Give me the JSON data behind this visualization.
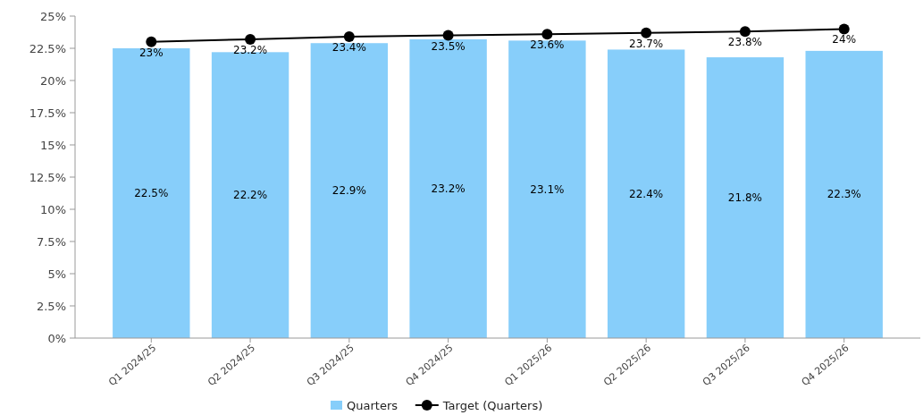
{
  "chart_data": {
    "type": "bar",
    "categories": [
      "Q1 2024/25",
      "Q2 2024/25",
      "Q3 2024/25",
      "Q4 2024/25",
      "Q1 2025/26",
      "Q2 2025/26",
      "Q3 2025/26",
      "Q4 2025/26"
    ],
    "series": [
      {
        "name": "Quarters",
        "color": "#87cefa",
        "values": [
          22.5,
          22.2,
          22.9,
          23.2,
          23.1,
          22.4,
          21.8,
          22.3
        ],
        "value_labels": [
          "22.5%",
          "22.2%",
          "22.9%",
          "23.2%",
          "23.1%",
          "22.4%",
          "21.8%",
          "22.3%"
        ]
      },
      {
        "name": "Target (Quarters)",
        "type": "line",
        "color": "#000000",
        "marker": "circle",
        "values": [
          23,
          23.2,
          23.4,
          23.5,
          23.6,
          23.7,
          23.8,
          24
        ],
        "value_labels": [
          "23%",
          "23.2%",
          "23.4%",
          "23.5%",
          "23.6%",
          "23.7%",
          "23.8%",
          "24%"
        ]
      }
    ],
    "ylim": [
      0,
      25
    ],
    "yticks": [
      {
        "value": 0,
        "label": "0%"
      },
      {
        "value": 2.5,
        "label": "2.5%"
      },
      {
        "value": 5,
        "label": "5%"
      },
      {
        "value": 7.5,
        "label": "7.5%"
      },
      {
        "value": 10,
        "label": "10%"
      },
      {
        "value": 12.5,
        "label": "12.5%"
      },
      {
        "value": 15,
        "label": "15%"
      },
      {
        "value": 17.5,
        "label": "17.5%"
      },
      {
        "value": 20,
        "label": "20%"
      },
      {
        "value": 22.5,
        "label": "22.5%"
      },
      {
        "value": 25,
        "label": "25%"
      }
    ],
    "legend": "bottom"
  }
}
